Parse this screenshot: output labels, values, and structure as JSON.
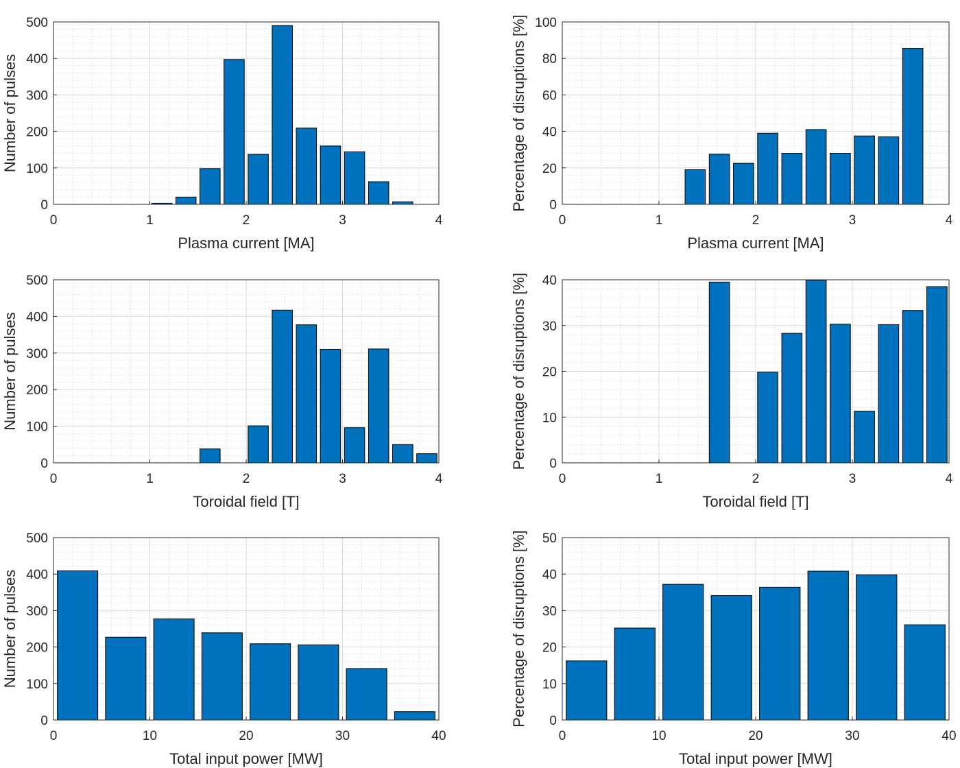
{
  "figure": {
    "bar_color": "#0072BD",
    "bar_edge_color": "#000000",
    "grid_color": "#d9d9d9",
    "axis_color": "#262626"
  },
  "chart_data": [
    {
      "id": "ip-pulses",
      "type": "bar",
      "xlabel": "Plasma current [MA]",
      "ylabel": "Number of pulses",
      "xlim": [
        0,
        4
      ],
      "ylim": [
        0,
        500
      ],
      "xticks": [
        0,
        1,
        2,
        3,
        4
      ],
      "yticks": [
        0,
        100,
        200,
        300,
        400,
        500
      ],
      "bin_width": 0.25,
      "x": [
        1.125,
        1.375,
        1.625,
        1.875,
        2.125,
        2.375,
        2.625,
        2.875,
        3.125,
        3.375,
        3.625
      ],
      "values": [
        3,
        20,
        98,
        397,
        137,
        490,
        209,
        160,
        144,
        62,
        7
      ],
      "grid": "major+minor"
    },
    {
      "id": "ip-disruptions",
      "type": "bar",
      "xlabel": "Plasma current [MA]",
      "ylabel": "Percentage of disruptions [%]",
      "xlim": [
        0,
        4
      ],
      "ylim": [
        0,
        100
      ],
      "xticks": [
        0,
        1,
        2,
        3,
        4
      ],
      "yticks": [
        0,
        20,
        40,
        60,
        80,
        100
      ],
      "bin_width": 0.25,
      "x": [
        1.375,
        1.625,
        1.875,
        2.125,
        2.375,
        2.625,
        2.875,
        3.125,
        3.375,
        3.625
      ],
      "values": [
        19,
        27.5,
        22.5,
        39,
        28,
        41,
        28,
        37.5,
        37,
        85.5
      ],
      "grid": "major+minor"
    },
    {
      "id": "bt-pulses",
      "type": "bar",
      "xlabel": "Toroidal field [T]",
      "ylabel": "Number of pulses",
      "xlim": [
        0,
        4
      ],
      "ylim": [
        0,
        500
      ],
      "xticks": [
        0,
        1,
        2,
        3,
        4
      ],
      "yticks": [
        0,
        100,
        200,
        300,
        400,
        500
      ],
      "bin_width": 0.25,
      "x": [
        1.625,
        2.125,
        2.375,
        2.625,
        2.875,
        3.125,
        3.375,
        3.625,
        3.875
      ],
      "values": [
        38,
        101,
        417,
        377,
        310,
        96,
        311,
        50,
        25
      ],
      "grid": "major+minor"
    },
    {
      "id": "bt-disruptions",
      "type": "bar",
      "xlabel": "Toroidal field [T]",
      "ylabel": "Percentage of disruptions [%]",
      "xlim": [
        0,
        4
      ],
      "ylim": [
        0,
        40
      ],
      "xticks": [
        0,
        1,
        2,
        3,
        4
      ],
      "yticks": [
        0,
        10,
        20,
        30,
        40
      ],
      "bin_width": 0.25,
      "x": [
        1.625,
        2.125,
        2.375,
        2.625,
        2.875,
        3.125,
        3.375,
        3.625,
        3.875
      ],
      "values": [
        39.5,
        19.8,
        28.3,
        39.9,
        30.3,
        11.3,
        30.2,
        33.3,
        38.5
      ],
      "grid": "major+minor"
    },
    {
      "id": "ptot-pulses",
      "type": "bar",
      "xlabel": "Total input power [MW]",
      "ylabel": "Number of pulses",
      "xlim": [
        0,
        40
      ],
      "ylim": [
        0,
        500
      ],
      "xticks": [
        0,
        10,
        20,
        30,
        40
      ],
      "yticks": [
        0,
        100,
        200,
        300,
        400,
        500
      ],
      "bin_width": 5,
      "x": [
        2.5,
        7.5,
        12.5,
        17.5,
        22.5,
        27.5,
        32.5,
        37.5
      ],
      "values": [
        409,
        227,
        277,
        239,
        209,
        206,
        141,
        23
      ],
      "grid": "major+minor"
    },
    {
      "id": "ptot-disruptions",
      "type": "bar",
      "xlabel": "Total input power [MW]",
      "ylabel": "Percentage of disruptions [%]",
      "xlim": [
        0,
        40
      ],
      "ylim": [
        0,
        50
      ],
      "xticks": [
        0,
        10,
        20,
        30,
        40
      ],
      "yticks": [
        0,
        10,
        20,
        30,
        40,
        50
      ],
      "bin_width": 5,
      "x": [
        2.5,
        7.5,
        12.5,
        17.5,
        22.5,
        27.5,
        32.5,
        37.5
      ],
      "values": [
        16.2,
        25.2,
        37.2,
        34.1,
        36.4,
        40.8,
        39.8,
        26.1
      ],
      "grid": "major+minor"
    }
  ]
}
